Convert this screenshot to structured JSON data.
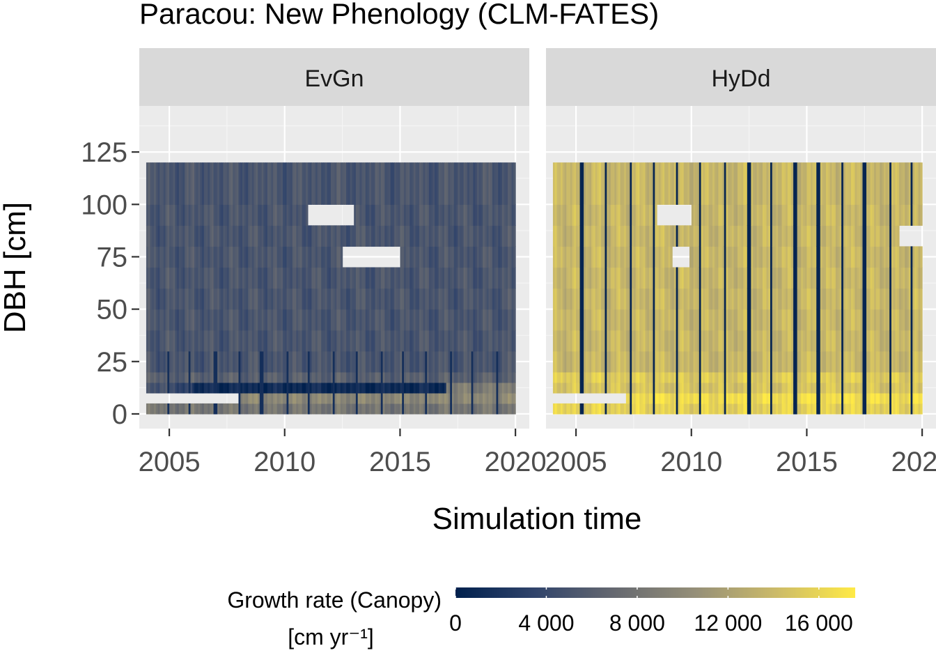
{
  "chart_data": {
    "type": "heatmap",
    "title": "Paracou: New Phenology (CLM-FATES)",
    "xlabel": "Simulation time",
    "ylabel": "DBH [cm]",
    "xlim": [
      2003.7,
      2020.6
    ],
    "ylim": [
      -7,
      147
    ],
    "x_ticks": [
      2005,
      2010,
      2015,
      2020
    ],
    "x_tick_labels": [
      "2005",
      "2010",
      "2015",
      "2020"
    ],
    "y_ticks": [
      0,
      25,
      50,
      75,
      100,
      125
    ],
    "y_tick_labels": [
      "0",
      "25",
      "50",
      "75",
      "100",
      "125"
    ],
    "grid": true,
    "x_range": [
      2004.0,
      2020.0
    ],
    "dbh_bins": [
      0,
      5,
      10,
      15,
      20,
      30,
      40,
      50,
      60,
      70,
      80,
      90,
      100,
      120
    ],
    "panels": [
      {
        "name": "EvGn",
        "base_value": 5200,
        "dark_month_years": [
          2004.95,
          2005.9,
          2007.0,
          2008.05,
          2009.0,
          2010.1,
          2011.05,
          2012.1,
          2013.15,
          2014.2,
          2015.1,
          2016.15,
          2017.2,
          2018.15,
          2019.2
        ],
        "dark_value": 1500,
        "dark_dbh_max": 30,
        "bands": [
          {
            "dbh": [
              10,
              15
            ],
            "x": [
              2006.0,
              2017.0
            ],
            "value": 1000
          },
          {
            "dbh": [
              10,
              15
            ],
            "x": [
              2005.0,
              2006.0
            ],
            "value": 3800
          },
          {
            "dbh": [
              10,
              15
            ],
            "x": [
              2017.0,
              2020.0
            ],
            "value": 8800
          },
          {
            "dbh": [
              15,
              20
            ],
            "x": [
              2004.0,
              2020.0
            ],
            "value": 6200
          },
          {
            "dbh": [
              0,
              5
            ],
            "x": [
              2004.0,
              2020.0
            ],
            "value": 8200
          },
          {
            "dbh": [
              5,
              10
            ],
            "x": [
              2008.0,
              2020.0
            ],
            "value": 9800
          }
        ],
        "missing": [
          {
            "dbh": [
              5,
              10
            ],
            "x": [
              2004.0,
              2008.0
            ]
          },
          {
            "dbh": [
              90,
              100
            ],
            "x": [
              2011.0,
              2013.0
            ]
          },
          {
            "dbh": [
              70,
              80
            ],
            "x": [
              2012.5,
              2015.0
            ]
          }
        ]
      },
      {
        "name": "HyDd",
        "base_value": 13800,
        "dark_month_years": [
          2005.25,
          2006.3,
          2007.35,
          2008.35,
          2009.4,
          2010.4,
          2011.45,
          2012.5,
          2013.45,
          2014.5,
          2015.5,
          2016.55,
          2017.5,
          2018.6,
          2019.55
        ],
        "dark_value": 500,
        "dark_dbh_max": 120,
        "bands": [
          {
            "dbh": [
              0,
              5
            ],
            "x": [
              2004.0,
              2020.0
            ],
            "value": 15800
          },
          {
            "dbh": [
              5,
              10
            ],
            "x": [
              2007.2,
              2020.0
            ],
            "value": 16600
          },
          {
            "dbh": [
              10,
              15
            ],
            "x": [
              2004.0,
              2020.0
            ],
            "value": 14800
          },
          {
            "dbh": [
              15,
              20
            ],
            "x": [
              2004.0,
              2020.0
            ],
            "value": 15300
          }
        ],
        "missing": [
          {
            "dbh": [
              5,
              10
            ],
            "x": [
              2004.0,
              2007.2
            ]
          },
          {
            "dbh": [
              90,
              100
            ],
            "x": [
              2008.5,
              2010.0
            ]
          },
          {
            "dbh": [
              70,
              80
            ],
            "x": [
              2009.2,
              2009.9
            ]
          },
          {
            "dbh": [
              80,
              90
            ],
            "x": [
              2019.0,
              2020.0
            ]
          }
        ]
      }
    ],
    "legend": {
      "title_line1": "Growth rate (Canopy)",
      "title_line2": "[cm yr⁻¹]",
      "placement": "bottom",
      "range": [
        0,
        17600
      ],
      "breaks": [
        0,
        4000,
        8000,
        12000,
        16000
      ],
      "break_labels": [
        "0",
        "4 000",
        "8 000",
        "12 000",
        "16 000"
      ],
      "colors": [
        "#00204d",
        "#31446b",
        "#666970",
        "#958f78",
        "#cbba69",
        "#ffea46"
      ]
    }
  }
}
